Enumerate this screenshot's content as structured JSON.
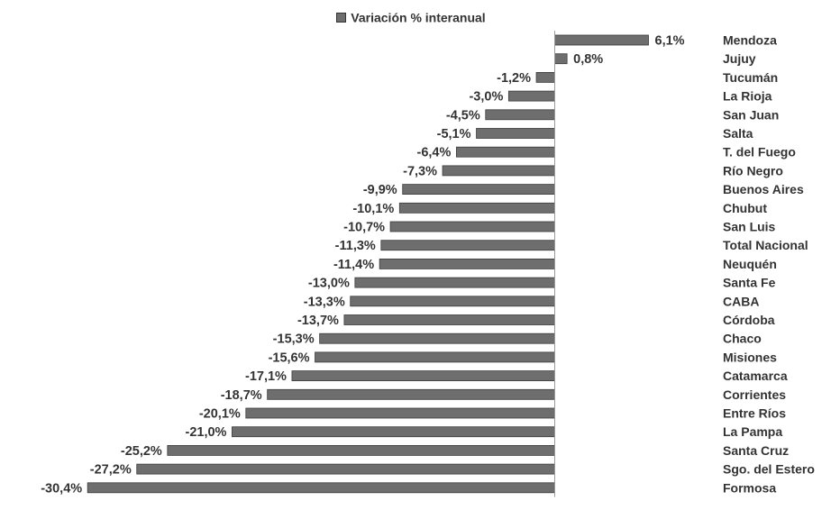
{
  "chart_data": {
    "type": "bar",
    "orientation": "horizontal",
    "legend": {
      "position": "top",
      "entries": [
        "Variación % interanual"
      ]
    },
    "series": [
      {
        "name": "Variación % interanual",
        "color": "#6e6e6e",
        "categories": [
          "Mendoza",
          "Jujuy",
          "Tucumán",
          "La Rioja",
          "San Juan",
          "Salta",
          "T. del Fuego",
          "Río Negro",
          "Buenos Aires",
          "Chubut",
          "San Luis",
          "Total Nacional",
          "Neuquén",
          "Santa Fe",
          "CABA",
          "Córdoba",
          "Chaco",
          "Misiones",
          "Catamarca",
          "Corrientes",
          "Entre Ríos",
          "La Pampa",
          "Santa Cruz",
          "Sgo. del Estero",
          "Formosa"
        ],
        "values": [
          6.1,
          0.8,
          -1.2,
          -3.0,
          -4.5,
          -5.1,
          -6.4,
          -7.3,
          -9.9,
          -10.1,
          -10.7,
          -11.3,
          -11.4,
          -13.0,
          -13.3,
          -13.7,
          -15.3,
          -15.6,
          -17.1,
          -18.7,
          -20.1,
          -21.0,
          -25.2,
          -27.2,
          -30.4
        ],
        "labels": [
          "6,1%",
          "0,8%",
          "-1,2%",
          "-3,0%",
          "-4,5%",
          "-5,1%",
          "-6,4%",
          "-7,3%",
          "-9,9%",
          "-10,1%",
          "-10,7%",
          "-11,3%",
          "-11,4%",
          "-13,0%",
          "-13,3%",
          "-13,7%",
          "-15,3%",
          "-15,6%",
          "-17,1%",
          "-18,7%",
          "-20,1%",
          "-21,0%",
          "-25,2%",
          "-27,2%",
          "-30,4%"
        ]
      }
    ],
    "grid": false
  }
}
